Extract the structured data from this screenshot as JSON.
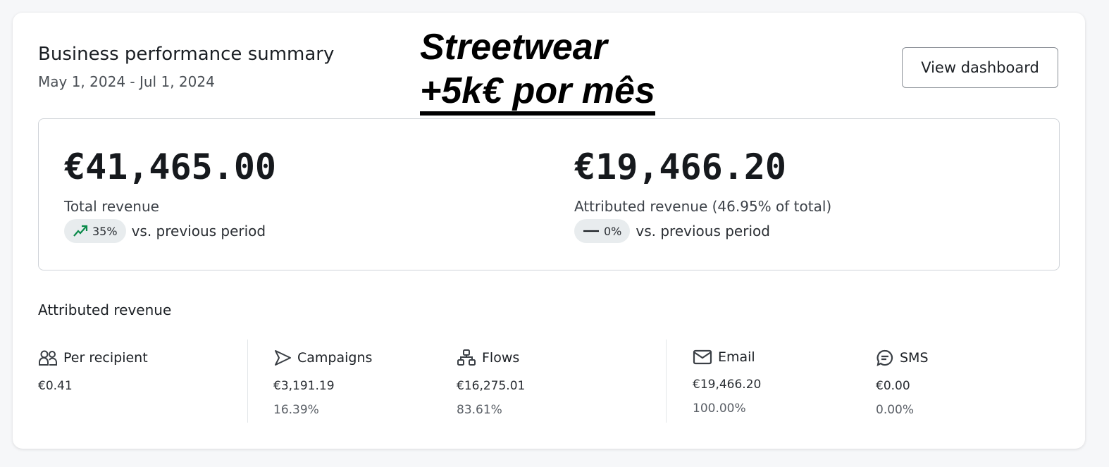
{
  "header": {
    "title": "Business performance summary",
    "date_range": "May 1, 2024 - Jul 1, 2024",
    "view_button": "View dashboard"
  },
  "overlay": {
    "line1": "Streetwear",
    "line2": "+5k€ por mês"
  },
  "summary": {
    "total": {
      "value": "€41,465.00",
      "label": "Total revenue",
      "change": "35%",
      "change_icon": "trend-up-icon",
      "change_color": "#0a8a4a",
      "comparison": "vs. previous period"
    },
    "attributed": {
      "value": "€19,466.20",
      "label": "Attributed revenue (46.95% of total)",
      "change": "0%",
      "change_icon": "dash-icon",
      "comparison": "vs. previous period"
    }
  },
  "attributed_revenue": {
    "title": "Attributed revenue",
    "columns": [
      {
        "label": "Per recipient",
        "icon": "users-icon",
        "value": "€0.41"
      },
      {
        "label": "Campaigns",
        "icon": "send-icon",
        "value": "€3,191.19",
        "percent": "16.39%"
      },
      {
        "label": "Flows",
        "icon": "flow-icon",
        "value": "€16,275.01",
        "percent": "83.61%"
      },
      {
        "label": "Email",
        "icon": "mail-icon",
        "value": "€19,466.20",
        "percent": "100.00%"
      },
      {
        "label": "SMS",
        "icon": "chat-icon",
        "value": "€0.00",
        "percent": "0.00%"
      }
    ]
  }
}
